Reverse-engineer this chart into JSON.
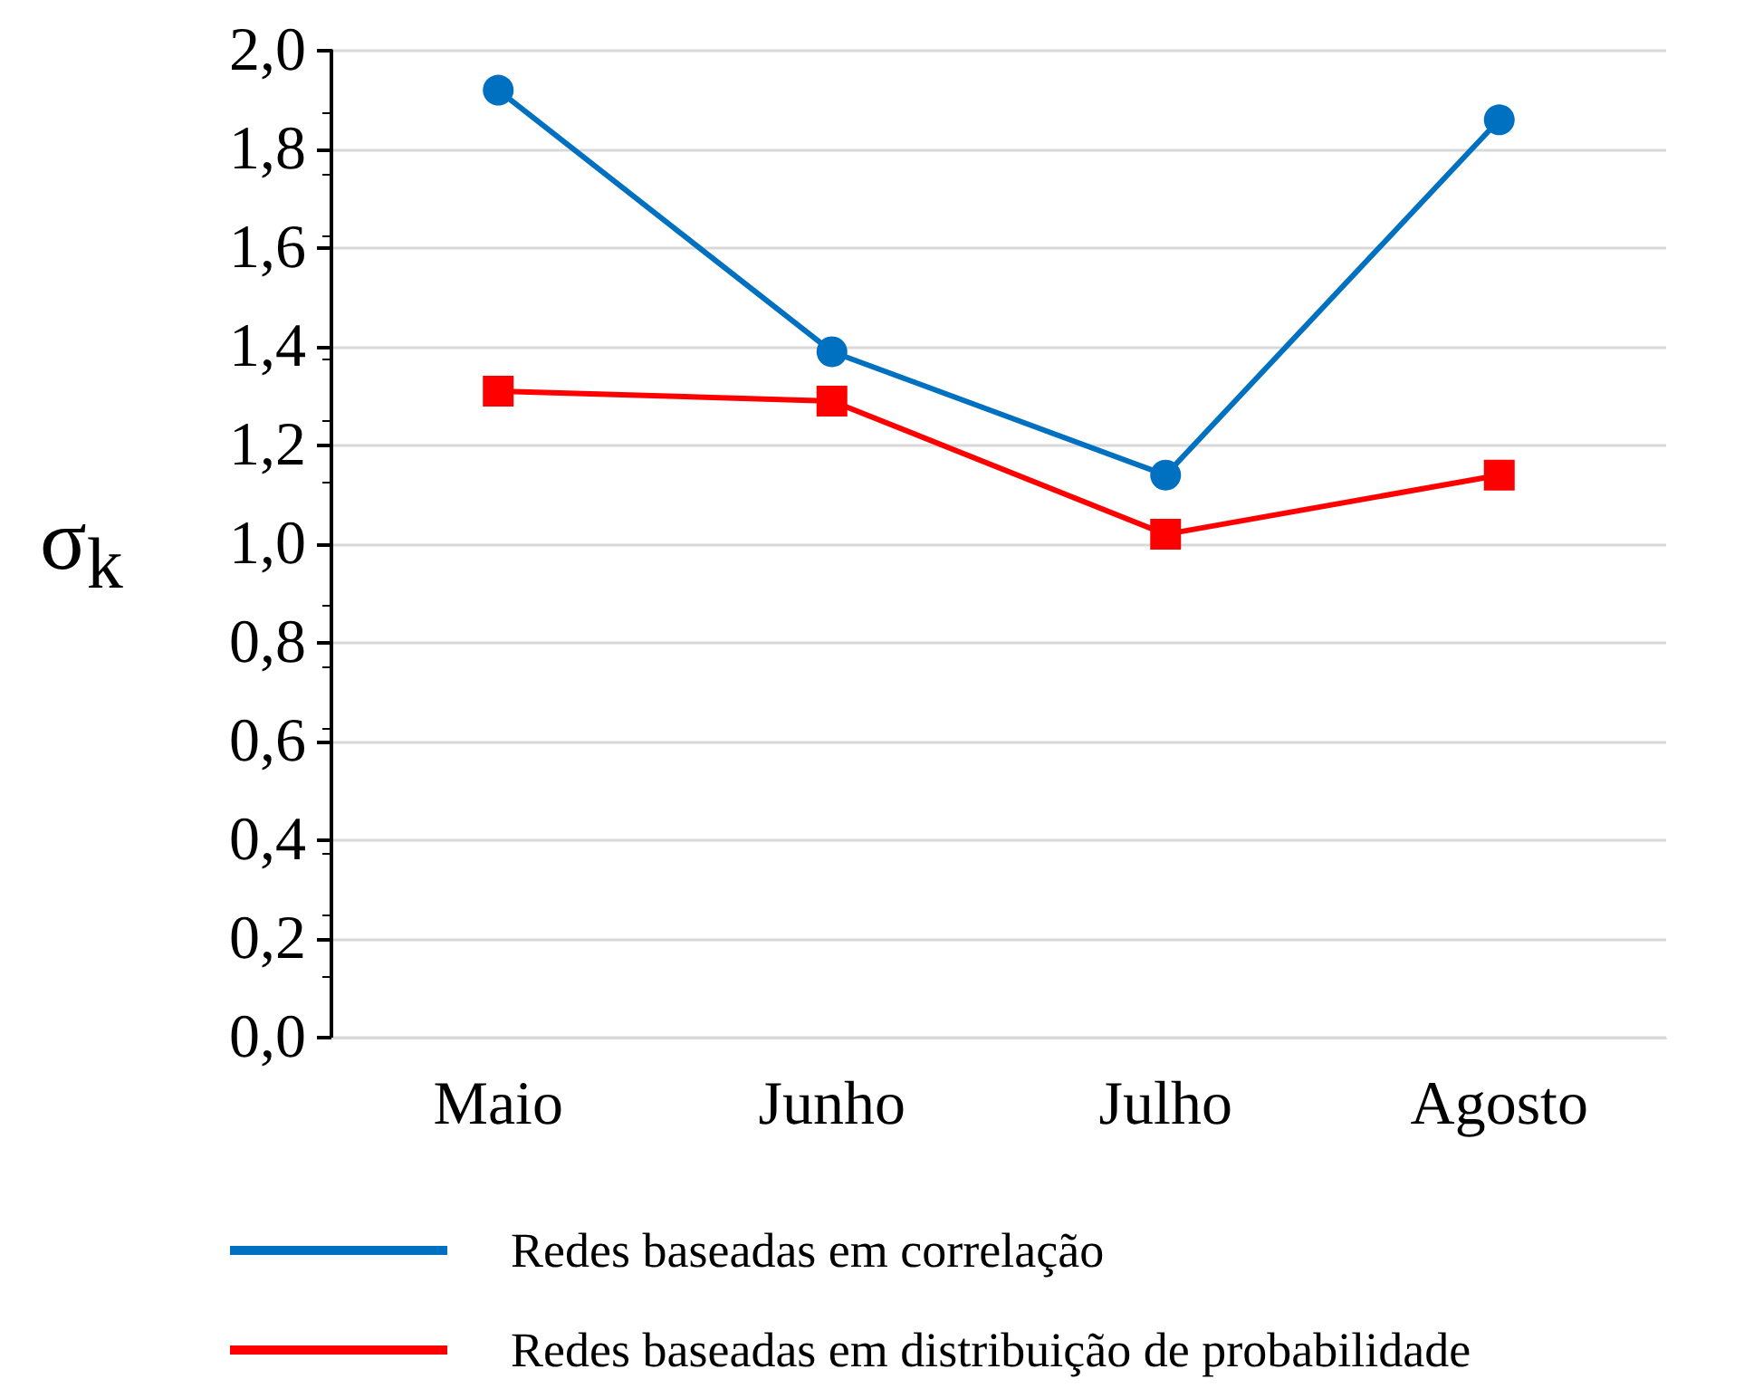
{
  "chart_data": {
    "type": "line",
    "ylabel": "σ$_{k}$",
    "categories": [
      "Maio",
      "Junho",
      "Julho",
      "Agosto"
    ],
    "series": [
      {
        "name": "Redes baseadas em correlação",
        "color": "#0070c0",
        "marker": "circle",
        "values": [
          1.92,
          1.39,
          1.14,
          1.86
        ]
      },
      {
        "name": "Redes baseadas em distribuição de probabilidade",
        "color": "#ff0000",
        "marker": "square",
        "values": [
          1.31,
          1.29,
          1.02,
          1.14
        ]
      }
    ],
    "ylim": [
      0,
      2
    ],
    "yticks": [
      {
        "value": 0,
        "label": "0,0"
      },
      {
        "value": 0.2,
        "label": "0,2"
      },
      {
        "value": 0.4,
        "label": "0,4"
      },
      {
        "value": 0.6,
        "label": "0,6"
      },
      {
        "value": 0.8,
        "label": "0,8"
      },
      {
        "value": 1,
        "label": "1,0"
      },
      {
        "value": 1.2,
        "label": "1,2"
      },
      {
        "value": 1.4,
        "label": "1,4"
      },
      {
        "value": 1.6,
        "label": "1,6"
      },
      {
        "value": 1.8,
        "label": "1,8"
      },
      {
        "value": 2,
        "label": "2,0"
      }
    ],
    "grid": "y",
    "legend": "bottom",
    "line_style": "solid"
  }
}
